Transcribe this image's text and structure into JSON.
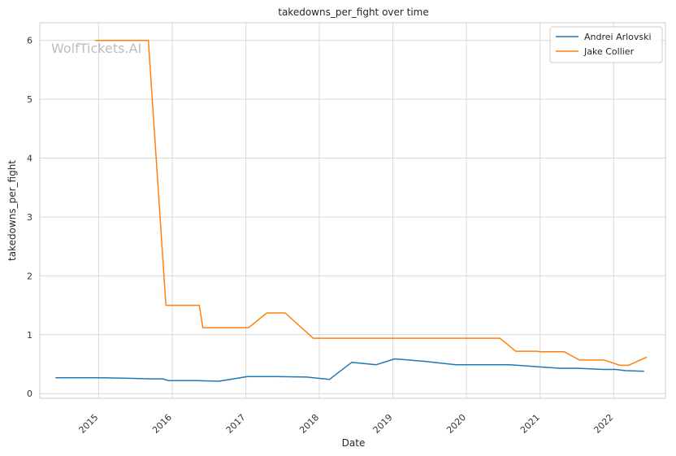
{
  "chart_data": {
    "type": "line",
    "title": "takedowns_per_fight over time",
    "xlabel": "Date",
    "ylabel": "takedowns_per_fight",
    "watermark": "WolfTickets.AI",
    "grid": true,
    "legend_position": "top-right",
    "xlim": [
      "2014-03-15",
      "2022-09-15"
    ],
    "ylim": [
      -0.08,
      6.3
    ],
    "x_ticks": [
      "2015",
      "2016",
      "2017",
      "2018",
      "2019",
      "2020",
      "2021",
      "2022"
    ],
    "y_ticks": [
      "0",
      "1",
      "2",
      "3",
      "4",
      "5",
      "6"
    ],
    "series": [
      {
        "name": "Andrei Arlovski",
        "color": "#1f77b4",
        "points": [
          [
            "2014-06-01",
            0.27
          ],
          [
            "2015-01-01",
            0.27
          ],
          [
            "2015-06-01",
            0.26
          ],
          [
            "2015-09-15",
            0.25
          ],
          [
            "2015-11-15",
            0.25
          ],
          [
            "2015-12-15",
            0.22
          ],
          [
            "2016-05-01",
            0.22
          ],
          [
            "2016-08-20",
            0.21
          ],
          [
            "2017-01-10",
            0.29
          ],
          [
            "2017-06-01",
            0.29
          ],
          [
            "2017-11-01",
            0.28
          ],
          [
            "2018-02-20",
            0.24
          ],
          [
            "2018-06-10",
            0.53
          ],
          [
            "2018-10-10",
            0.49
          ],
          [
            "2019-01-10",
            0.59
          ],
          [
            "2019-06-01",
            0.55
          ],
          [
            "2019-11-10",
            0.49
          ],
          [
            "2020-08-01",
            0.49
          ],
          [
            "2020-12-01",
            0.46
          ],
          [
            "2021-04-10",
            0.43
          ],
          [
            "2021-07-10",
            0.43
          ],
          [
            "2021-11-10",
            0.41
          ],
          [
            "2022-01-10",
            0.41
          ],
          [
            "2022-03-01",
            0.39
          ],
          [
            "2022-06-01",
            0.38
          ]
        ]
      },
      {
        "name": "Jake Collier",
        "color": "#ff7f0e",
        "points": [
          [
            "2014-12-15",
            6.0
          ],
          [
            "2015-09-05",
            6.0
          ],
          [
            "2015-12-01",
            1.5
          ],
          [
            "2016-05-15",
            1.5
          ],
          [
            "2016-06-01",
            1.12
          ],
          [
            "2017-01-15",
            1.12
          ],
          [
            "2017-04-15",
            1.37
          ],
          [
            "2017-07-15",
            1.37
          ],
          [
            "2017-12-01",
            0.94
          ],
          [
            "2020-06-15",
            0.94
          ],
          [
            "2020-09-01",
            0.72
          ],
          [
            "2020-12-15",
            0.72
          ],
          [
            "2021-01-01",
            0.71
          ],
          [
            "2021-05-01",
            0.71
          ],
          [
            "2021-07-15",
            0.57
          ],
          [
            "2021-11-15",
            0.57
          ],
          [
            "2022-02-01",
            0.48
          ],
          [
            "2022-03-15",
            0.48
          ],
          [
            "2022-06-15",
            0.62
          ]
        ]
      }
    ]
  }
}
